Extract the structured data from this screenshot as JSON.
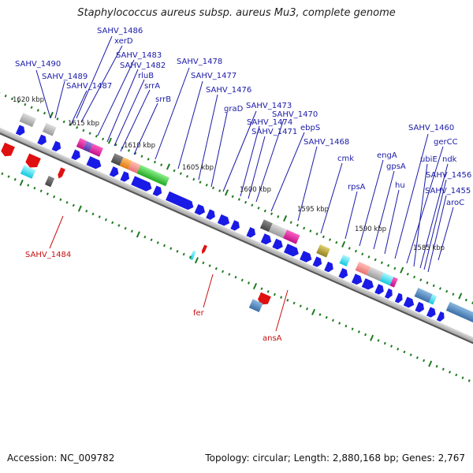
{
  "title": "Staphylococcus aureus subsp. aureus Mu3, complete genome",
  "footer": {
    "accession": "Accession: NC_009782",
    "topology": "Topology: circular; Length: 2,880,168 bp; Genes: 2,767"
  },
  "kbp_ticks": [
    "1620 kbp",
    "1615 kbp",
    "1610 kbp",
    "1605 kbp",
    "1600 kbp",
    "1595 kbp",
    "1590 kbp",
    "1585 kbp"
  ],
  "gene_labels_top": [
    "SAHV_1486",
    "xerD",
    "SAHV_1490",
    "SAHV_1483",
    "SAHV_1482",
    "SAHV_1489",
    "SAHV_1487",
    "rluB",
    "srrA",
    "srrB",
    "SAHV_1478",
    "SAHV_1477",
    "SAHV_1476",
    "graD",
    "SAHV_1473",
    "SAHV_1474",
    "SAHV_1470",
    "SAHV_1471",
    "ebpS",
    "SAHV_1468",
    "cmk",
    "rpsA",
    "engA",
    "gpsA",
    "hu",
    "SAHV_1460",
    "gerCC",
    "ubiE",
    "ndk",
    "SAHV_1456",
    "SAHV_1455",
    "aroC"
  ],
  "gene_labels_bottom": [
    "SAHV_1484",
    "fer",
    "ansA"
  ],
  "colors": {
    "forward_gene": "#1a1ae6",
    "label_blue": "#1a1aa8",
    "label_red": "#c81010",
    "backbone": "#8a8a8a",
    "tick_green": "#1f7a1f",
    "reverse_gene": "#e01010"
  }
}
